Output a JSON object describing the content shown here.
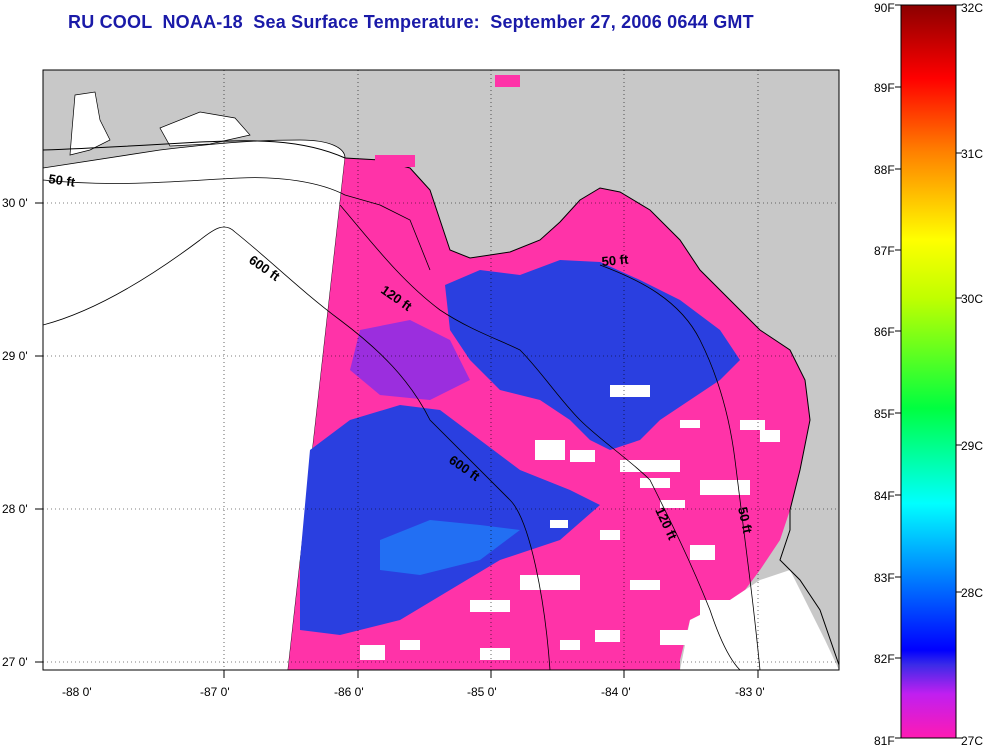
{
  "title": "RU COOL  NOAA-18  Sea Surface Temperature:  September 27, 2006 0644 GMT",
  "map": {
    "lat_ticks": [
      "27 0'",
      "28 0'",
      "29 0'",
      "30 0'"
    ],
    "lon_ticks": [
      "-88 0'",
      "-87 0'",
      "-86 0'",
      "-85 0'",
      "-84 0'",
      "-83 0'"
    ],
    "contours": [
      {
        "label": "50 ft"
      },
      {
        "label": "600 ft"
      },
      {
        "label": "120 ft"
      },
      {
        "label": "50 ft"
      },
      {
        "label": "600 ft"
      },
      {
        "label": "120 ft"
      },
      {
        "label": "50 ft"
      }
    ]
  },
  "colorbar": {
    "fahrenheit": [
      "90F",
      "89F",
      "88F",
      "87F",
      "86F",
      "85F",
      "84F",
      "83F",
      "82F",
      "81F"
    ],
    "celsius": [
      "32C",
      "31C",
      "30C",
      "29C",
      "28C",
      "27C"
    ]
  },
  "colors": {
    "title": "#1a1aa8",
    "land": "#c8c8c8",
    "water_nodata": "#ffffff",
    "sst_warm": "#ff33a8",
    "sst_cool": "#2a3fe0",
    "sst_mid": "#7a2ef0"
  }
}
